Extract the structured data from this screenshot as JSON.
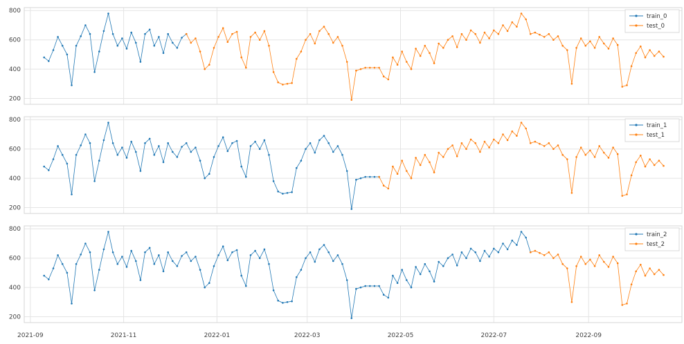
{
  "figure": {
    "background": "#ffffff",
    "grid_color": "#e4e4e4",
    "spine_color": "#d6d6d6",
    "train_color": "#1f77b4",
    "test_color": "#ff7f0e",
    "tick_label_color": "#3f3f3f",
    "legend_border_color": "#d9d9d9"
  },
  "chart_data": {
    "type": "line",
    "title": "",
    "xlabel": "",
    "ylabel": "",
    "grid": true,
    "legend_position": "upper right",
    "x_start": "2021-09-10",
    "x_step_days": 3,
    "x_domain": [
      "2021-08-28",
      "2022-11-01"
    ],
    "ylim": [
      160,
      820
    ],
    "y_ticks": [
      200,
      400,
      600,
      800
    ],
    "x_ticks": [
      {
        "date": "2021-09-01",
        "label": "2021-09"
      },
      {
        "date": "2021-11-01",
        "label": "2021-11"
      },
      {
        "date": "2022-01-01",
        "label": "2022-01"
      },
      {
        "date": "2022-03-01",
        "label": "2022-03"
      },
      {
        "date": "2022-05-01",
        "label": "2022-05"
      },
      {
        "date": "2022-07-01",
        "label": "2022-07"
      },
      {
        "date": "2022-09-01",
        "label": "2022-09"
      }
    ],
    "values": [
      480,
      455,
      530,
      620,
      560,
      500,
      290,
      560,
      625,
      700,
      640,
      380,
      520,
      660,
      780,
      640,
      560,
      610,
      540,
      650,
      580,
      450,
      640,
      670,
      560,
      620,
      510,
      640,
      580,
      545,
      615,
      640,
      580,
      610,
      520,
      400,
      430,
      545,
      620,
      680,
      585,
      640,
      655,
      480,
      410,
      620,
      650,
      600,
      660,
      560,
      380,
      310,
      295,
      300,
      305,
      470,
      520,
      600,
      640,
      575,
      660,
      690,
      640,
      580,
      620,
      560,
      450,
      190,
      390,
      400,
      410,
      410,
      410,
      410,
      350,
      330,
      480,
      430,
      520,
      450,
      400,
      540,
      490,
      560,
      510,
      440,
      575,
      545,
      600,
      625,
      550,
      640,
      600,
      665,
      640,
      580,
      650,
      610,
      665,
      640,
      700,
      660,
      720,
      690,
      780,
      740,
      640,
      650,
      635,
      620,
      640,
      600,
      625,
      560,
      530,
      300,
      545,
      610,
      560,
      590,
      545,
      620,
      575,
      540,
      610,
      565,
      280,
      290,
      420,
      510,
      555,
      480,
      530,
      490,
      520,
      485
    ],
    "subplots": [
      {
        "train_label": "train_0",
        "test_label": "test_0",
        "split_index": 31
      },
      {
        "train_label": "train_1",
        "test_label": "test_1",
        "split_index": 73
      },
      {
        "train_label": "train_2",
        "test_label": "test_2",
        "split_index": 106
      }
    ]
  }
}
